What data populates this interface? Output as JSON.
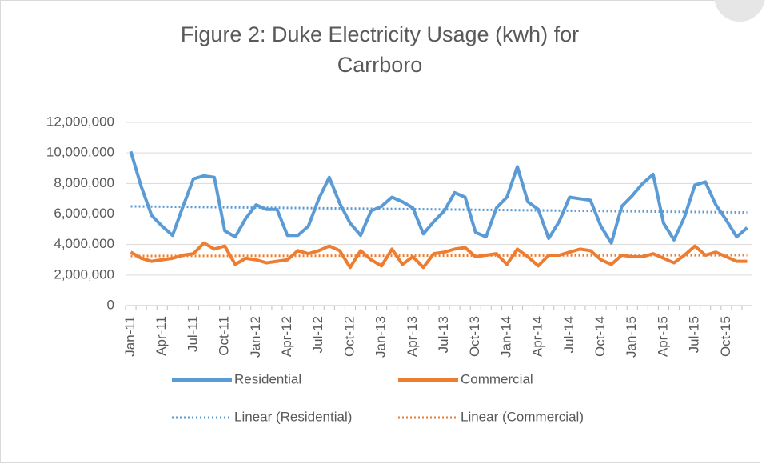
{
  "chart_data": {
    "type": "line",
    "title": "Figure 2: Duke Electricity Usage (kwh) for Carrboro",
    "categories": [
      "Jan-11",
      null,
      null,
      "Apr-11",
      null,
      null,
      "Jul-11",
      null,
      null,
      "Oct-11",
      null,
      null,
      "Jan-12",
      null,
      null,
      "Apr-12",
      null,
      null,
      "Jul-12",
      null,
      null,
      "Oct-12",
      null,
      null,
      "Jan-13",
      null,
      null,
      "Apr-13",
      null,
      null,
      "Jul-13",
      null,
      null,
      "Oct-13",
      null,
      null,
      "Jan-14",
      null,
      null,
      "Apr-14",
      null,
      null,
      "Jul-14",
      null,
      null,
      "Oct-14",
      null,
      null,
      "Jan-15",
      null,
      null,
      "Apr-15",
      null,
      null,
      "Jul-15",
      null,
      null,
      "Oct-15",
      null,
      null
    ],
    "series": [
      {
        "name": "Residential",
        "color": "#5b9bd5",
        "values": [
          10100000,
          7800000,
          5900000,
          5200000,
          4600000,
          6500000,
          8300000,
          8500000,
          8400000,
          4900000,
          4500000,
          5700000,
          6600000,
          6300000,
          6300000,
          4600000,
          4600000,
          5200000,
          7000000,
          8400000,
          6700000,
          5400000,
          4600000,
          6200000,
          6500000,
          7100000,
          6800000,
          6400000,
          4700000,
          5500000,
          6200000,
          7400000,
          7100000,
          4800000,
          4500000,
          6400000,
          7100000,
          9100000,
          6800000,
          6300000,
          4400000,
          5500000,
          7100000,
          7000000,
          6900000,
          5200000,
          4100000,
          6500000,
          7200000,
          8000000,
          8600000,
          5400000,
          4300000,
          5800000,
          7900000,
          8100000,
          6600000,
          5600000,
          4500000,
          5100000
        ]
      },
      {
        "name": "Commercial",
        "color": "#ed7d31",
        "values": [
          3500000,
          3100000,
          2900000,
          3000000,
          3100000,
          3300000,
          3400000,
          4100000,
          3700000,
          3900000,
          2700000,
          3100000,
          3000000,
          2800000,
          2900000,
          3000000,
          3600000,
          3400000,
          3600000,
          3900000,
          3600000,
          2500000,
          3600000,
          3000000,
          2600000,
          3700000,
          2700000,
          3200000,
          2500000,
          3400000,
          3500000,
          3700000,
          3800000,
          3200000,
          3300000,
          3400000,
          2700000,
          3700000,
          3200000,
          2600000,
          3300000,
          3300000,
          3500000,
          3700000,
          3600000,
          3000000,
          2700000,
          3300000,
          3200000,
          3200000,
          3400000,
          3100000,
          2800000,
          3300000,
          3900000,
          3300000,
          3500000,
          3200000,
          2900000,
          2900000
        ]
      }
    ],
    "trendlines": [
      {
        "name": "Linear (Residential)",
        "color": "#5b9bd5",
        "start": 6500000,
        "end": 6100000
      },
      {
        "name": "Linear (Commercial)",
        "color": "#ed7d31",
        "start": 3250000,
        "end": 3300000
      }
    ],
    "ylim": [
      0,
      12000000
    ],
    "yticks": [
      0,
      {
        "value": 2000000,
        "label": "2,000,000"
      },
      {
        "value": 4000000,
        "label": "4,000,000"
      },
      {
        "value": 6000000,
        "label": "6,000,000"
      },
      {
        "value": 8000000,
        "label": "8,000,000"
      },
      {
        "value": 10000000,
        "label": "10,000,000"
      },
      {
        "value": 12000000,
        "label": "12,000,000"
      }
    ],
    "grid": true
  }
}
